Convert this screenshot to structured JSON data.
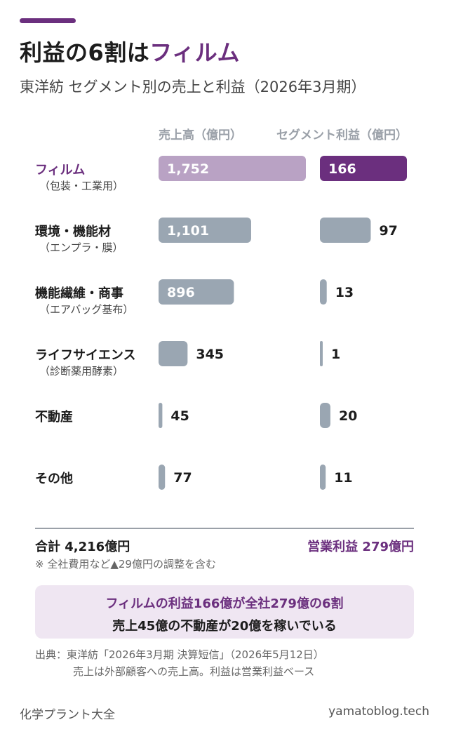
{
  "header": {
    "title_main": "利益の6割は",
    "title_highlight": "フィルム",
    "subtitle": "東洋紡 セグメント別の売上と利益（2026年3月期）"
  },
  "columns": {
    "sales": "売上高（億円）",
    "profit": "セグメント利益（億円）"
  },
  "colors": {
    "accent": "#6b2f7e",
    "accent_light": "#b9a2c4",
    "gray_bar": "#9aa6b2",
    "callout_bg": "#efe6f2"
  },
  "rows": [
    {
      "label": "フィルム",
      "sub": "（包装・工業用）"
    },
    {
      "label": "環境・機能材",
      "sub": "（エンプラ・膜）"
    },
    {
      "label": "機能繊維・商事",
      "sub": "（エアバッグ基布）"
    },
    {
      "label": "ライフサイエンス",
      "sub": "（診断薬用酵素）"
    },
    {
      "label": "不動産",
      "sub": ""
    },
    {
      "label": "その他",
      "sub": ""
    }
  ],
  "chart_data": {
    "type": "bar",
    "orientation": "horizontal",
    "categories": [
      "フィルム",
      "環境・機能材",
      "機能繊維・商事",
      "ライフサイエンス",
      "不動産",
      "その他"
    ],
    "series": [
      {
        "name": "売上高（億円）",
        "values": [
          1752,
          1101,
          896,
          345,
          45,
          77
        ]
      },
      {
        "name": "セグメント利益（億円）",
        "values": [
          166,
          97,
          13,
          1,
          20,
          11
        ]
      }
    ],
    "value_labels": {
      "sales": [
        "1,752",
        "1,101",
        "896",
        "345",
        "45",
        "77"
      ],
      "profit": [
        "166",
        "97",
        "13",
        "1",
        "20",
        "11"
      ]
    },
    "highlight_index": 0
  },
  "summary": {
    "total": "合計 4,216億円",
    "operating_profit": "営業利益 279億円",
    "note": "※ 全社費用など▲29億円の調整を含む"
  },
  "callout": {
    "line1": "フィルムの利益166億が全社279億の6割",
    "line2": "売上45億の不動産が20億を稼いでいる"
  },
  "source": {
    "line1": "出典：東洋紡「2026年3月期 決算短信」（2026年5月12日）",
    "line2": "売上は外部顧客への売上高。利益は営業利益ベース"
  },
  "footer": {
    "left": "化学プラント大全",
    "right": "yamatoblog.tech"
  }
}
